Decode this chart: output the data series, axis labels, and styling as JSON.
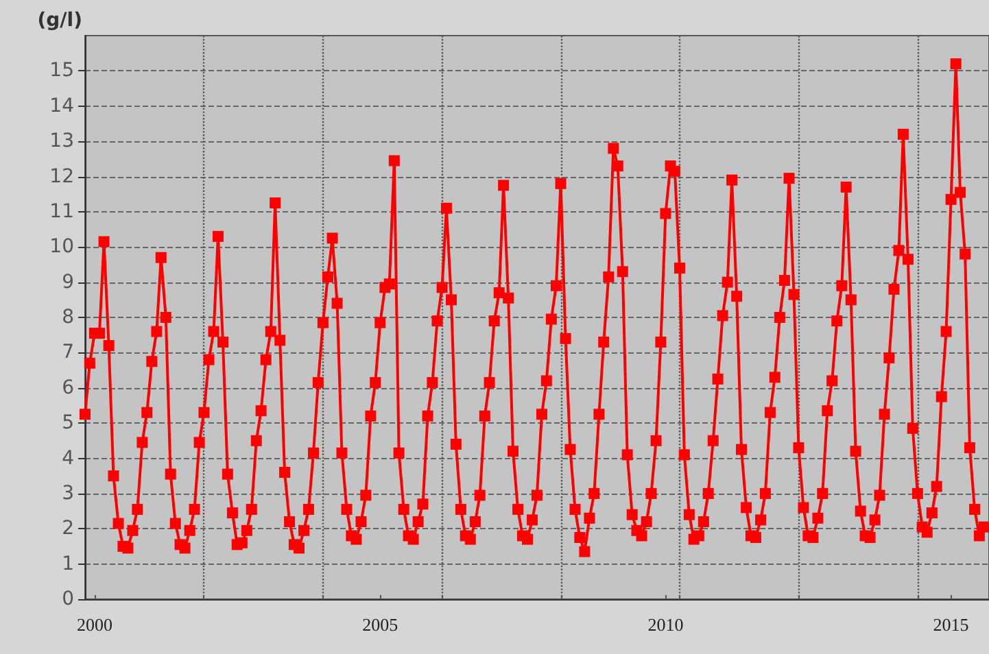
{
  "chart_data": {
    "type": "line",
    "ylabel": "(g/l)",
    "x": [
      "1999-11",
      "1999-12",
      "2000-01",
      "2000-02",
      "2000-03",
      "2000-04",
      "2000-05",
      "2000-06",
      "2000-07",
      "2000-08",
      "2000-09",
      "2000-10",
      "2000-11",
      "2000-12",
      "2001-01",
      "2001-02",
      "2001-03",
      "2001-04",
      "2001-05",
      "2001-06",
      "2001-07",
      "2001-08",
      "2001-09",
      "2001-10",
      "2001-11",
      "2001-12",
      "2002-01",
      "2002-02",
      "2002-03",
      "2002-04",
      "2002-05",
      "2002-06",
      "2002-07",
      "2002-08",
      "2002-09",
      "2002-10",
      "2002-11",
      "2002-12",
      "2003-01",
      "2003-02",
      "2003-03",
      "2003-04",
      "2003-05",
      "2003-06",
      "2003-07",
      "2003-08",
      "2003-09",
      "2003-10",
      "2003-11",
      "2003-12",
      "2004-01",
      "2004-02",
      "2004-03",
      "2004-04",
      "2004-05",
      "2004-06",
      "2004-07",
      "2004-08",
      "2004-09",
      "2004-10",
      "2004-11",
      "2004-12",
      "2005-01",
      "2005-02",
      "2005-03",
      "2005-04",
      "2005-05",
      "2005-06",
      "2005-07",
      "2005-08",
      "2005-09",
      "2005-10",
      "2005-11",
      "2005-12",
      "2006-01",
      "2006-02",
      "2006-03",
      "2006-04",
      "2006-05",
      "2006-06",
      "2006-07",
      "2006-08",
      "2006-09",
      "2006-10",
      "2006-11",
      "2006-12",
      "2007-01",
      "2007-02",
      "2007-03",
      "2007-04",
      "2007-05",
      "2007-06",
      "2007-07",
      "2007-08",
      "2007-09",
      "2007-10",
      "2007-11",
      "2007-12",
      "2008-01",
      "2008-02",
      "2008-03",
      "2008-04",
      "2008-05",
      "2008-06",
      "2008-07",
      "2008-08",
      "2008-09",
      "2008-10",
      "2008-11",
      "2008-12",
      "2009-01",
      "2009-02",
      "2009-03",
      "2009-04",
      "2009-05",
      "2009-06",
      "2009-07",
      "2009-08",
      "2009-09",
      "2009-10",
      "2009-11",
      "2009-12",
      "2010-01",
      "2010-02",
      "2010-03",
      "2010-04",
      "2010-05",
      "2010-06",
      "2010-07",
      "2010-08",
      "2010-09",
      "2010-10",
      "2010-11",
      "2010-12",
      "2011-01",
      "2011-02",
      "2011-03",
      "2011-04",
      "2011-05",
      "2011-06",
      "2011-07",
      "2011-08",
      "2011-09",
      "2011-10",
      "2011-11",
      "2011-12",
      "2012-01",
      "2012-02",
      "2012-03",
      "2012-04",
      "2012-05",
      "2012-06",
      "2012-07",
      "2012-08",
      "2012-09",
      "2012-10",
      "2012-11",
      "2012-12",
      "2013-01",
      "2013-02",
      "2013-03",
      "2013-04",
      "2013-05",
      "2013-06",
      "2013-07",
      "2013-08",
      "2013-09",
      "2013-10",
      "2013-11",
      "2013-12",
      "2014-01",
      "2014-02",
      "2014-03",
      "2014-04",
      "2014-05",
      "2014-06",
      "2014-07",
      "2014-08",
      "2014-09",
      "2014-10",
      "2014-11",
      "2014-12",
      "2015-01",
      "2015-02",
      "2015-03",
      "2015-04",
      "2015-05",
      "2015-06",
      "2015-07",
      "2015-08"
    ],
    "series": [
      {
        "color": "#ff0000",
        "values": [
          5.25,
          6.7,
          7.55,
          7.55,
          10.15,
          7.2,
          3.5,
          2.15,
          1.5,
          1.45,
          1.95,
          2.55,
          4.45,
          5.3,
          6.75,
          7.6,
          9.7,
          8.0,
          3.55,
          2.15,
          1.55,
          1.45,
          1.95,
          2.55,
          4.45,
          5.3,
          6.8,
          7.6,
          10.3,
          7.3,
          3.55,
          2.45,
          1.55,
          1.6,
          1.95,
          2.55,
          4.5,
          5.35,
          6.8,
          7.6,
          11.25,
          7.35,
          3.6,
          2.2,
          1.55,
          1.45,
          1.95,
          2.55,
          4.15,
          6.15,
          7.85,
          9.15,
          10.25,
          8.4,
          4.15,
          2.55,
          1.8,
          1.7,
          2.2,
          2.95,
          5.2,
          6.15,
          7.85,
          8.85,
          8.95,
          12.45,
          4.15,
          2.55,
          1.8,
          1.7,
          2.2,
          2.7,
          5.2,
          6.15,
          7.9,
          8.85,
          11.1,
          8.5,
          4.4,
          2.55,
          1.8,
          1.7,
          2.2,
          2.95,
          5.2,
          6.15,
          7.9,
          8.7,
          11.75,
          8.55,
          4.2,
          2.55,
          1.8,
          1.7,
          2.25,
          2.95,
          5.25,
          6.2,
          7.95,
          8.9,
          11.8,
          7.4,
          4.25,
          2.55,
          1.75,
          1.35,
          2.3,
          3.0,
          5.25,
          7.3,
          9.15,
          12.8,
          12.3,
          9.3,
          4.1,
          2.4,
          1.95,
          1.8,
          2.2,
          3.0,
          4.5,
          7.3,
          10.95,
          12.3,
          12.15,
          9.4,
          4.1,
          2.4,
          1.7,
          1.8,
          2.2,
          3.0,
          4.5,
          6.25,
          8.05,
          9.0,
          11.9,
          8.6,
          4.25,
          2.6,
          1.8,
          1.75,
          2.25,
          3.0,
          5.3,
          6.3,
          8.0,
          9.05,
          11.95,
          8.65,
          4.3,
          2.6,
          1.8,
          1.75,
          2.3,
          3.0,
          5.35,
          6.2,
          7.9,
          8.9,
          11.7,
          8.5,
          4.2,
          2.5,
          1.8,
          1.75,
          2.25,
          2.95,
          5.25,
          6.85,
          8.8,
          9.9,
          13.2,
          9.65,
          4.85,
          3.0,
          2.05,
          1.9,
          2.45,
          3.2,
          5.75,
          7.6,
          11.35,
          15.2,
          11.55,
          9.8,
          4.3,
          2.55,
          1.8,
          2.05
        ]
      }
    ],
    "xlim": [
      "1999-11",
      "2015-09"
    ],
    "xticks": [
      {
        "value": "2000-01",
        "label": "2000"
      },
      {
        "value": "2001-12",
        "label": null
      },
      {
        "value": "2004-01",
        "label": null
      },
      {
        "value": "2005-01",
        "label": "2005"
      },
      {
        "value": "2006-02",
        "label": null
      },
      {
        "value": "2008-03",
        "label": null
      },
      {
        "value": "2010-01",
        "label": "2010"
      },
      {
        "value": "2010-04",
        "label": null
      },
      {
        "value": "2012-05",
        "label": null
      },
      {
        "value": "2014-06",
        "label": null
      },
      {
        "value": "2015-01",
        "label": "2015"
      }
    ],
    "ylim": [
      0,
      16
    ],
    "yticks": [
      0,
      1,
      2,
      3,
      4,
      5,
      6,
      7,
      8,
      9,
      10,
      11,
      12,
      13,
      14,
      15
    ],
    "grid": true,
    "legend": false,
    "marker": "square",
    "line_style": "solid"
  }
}
